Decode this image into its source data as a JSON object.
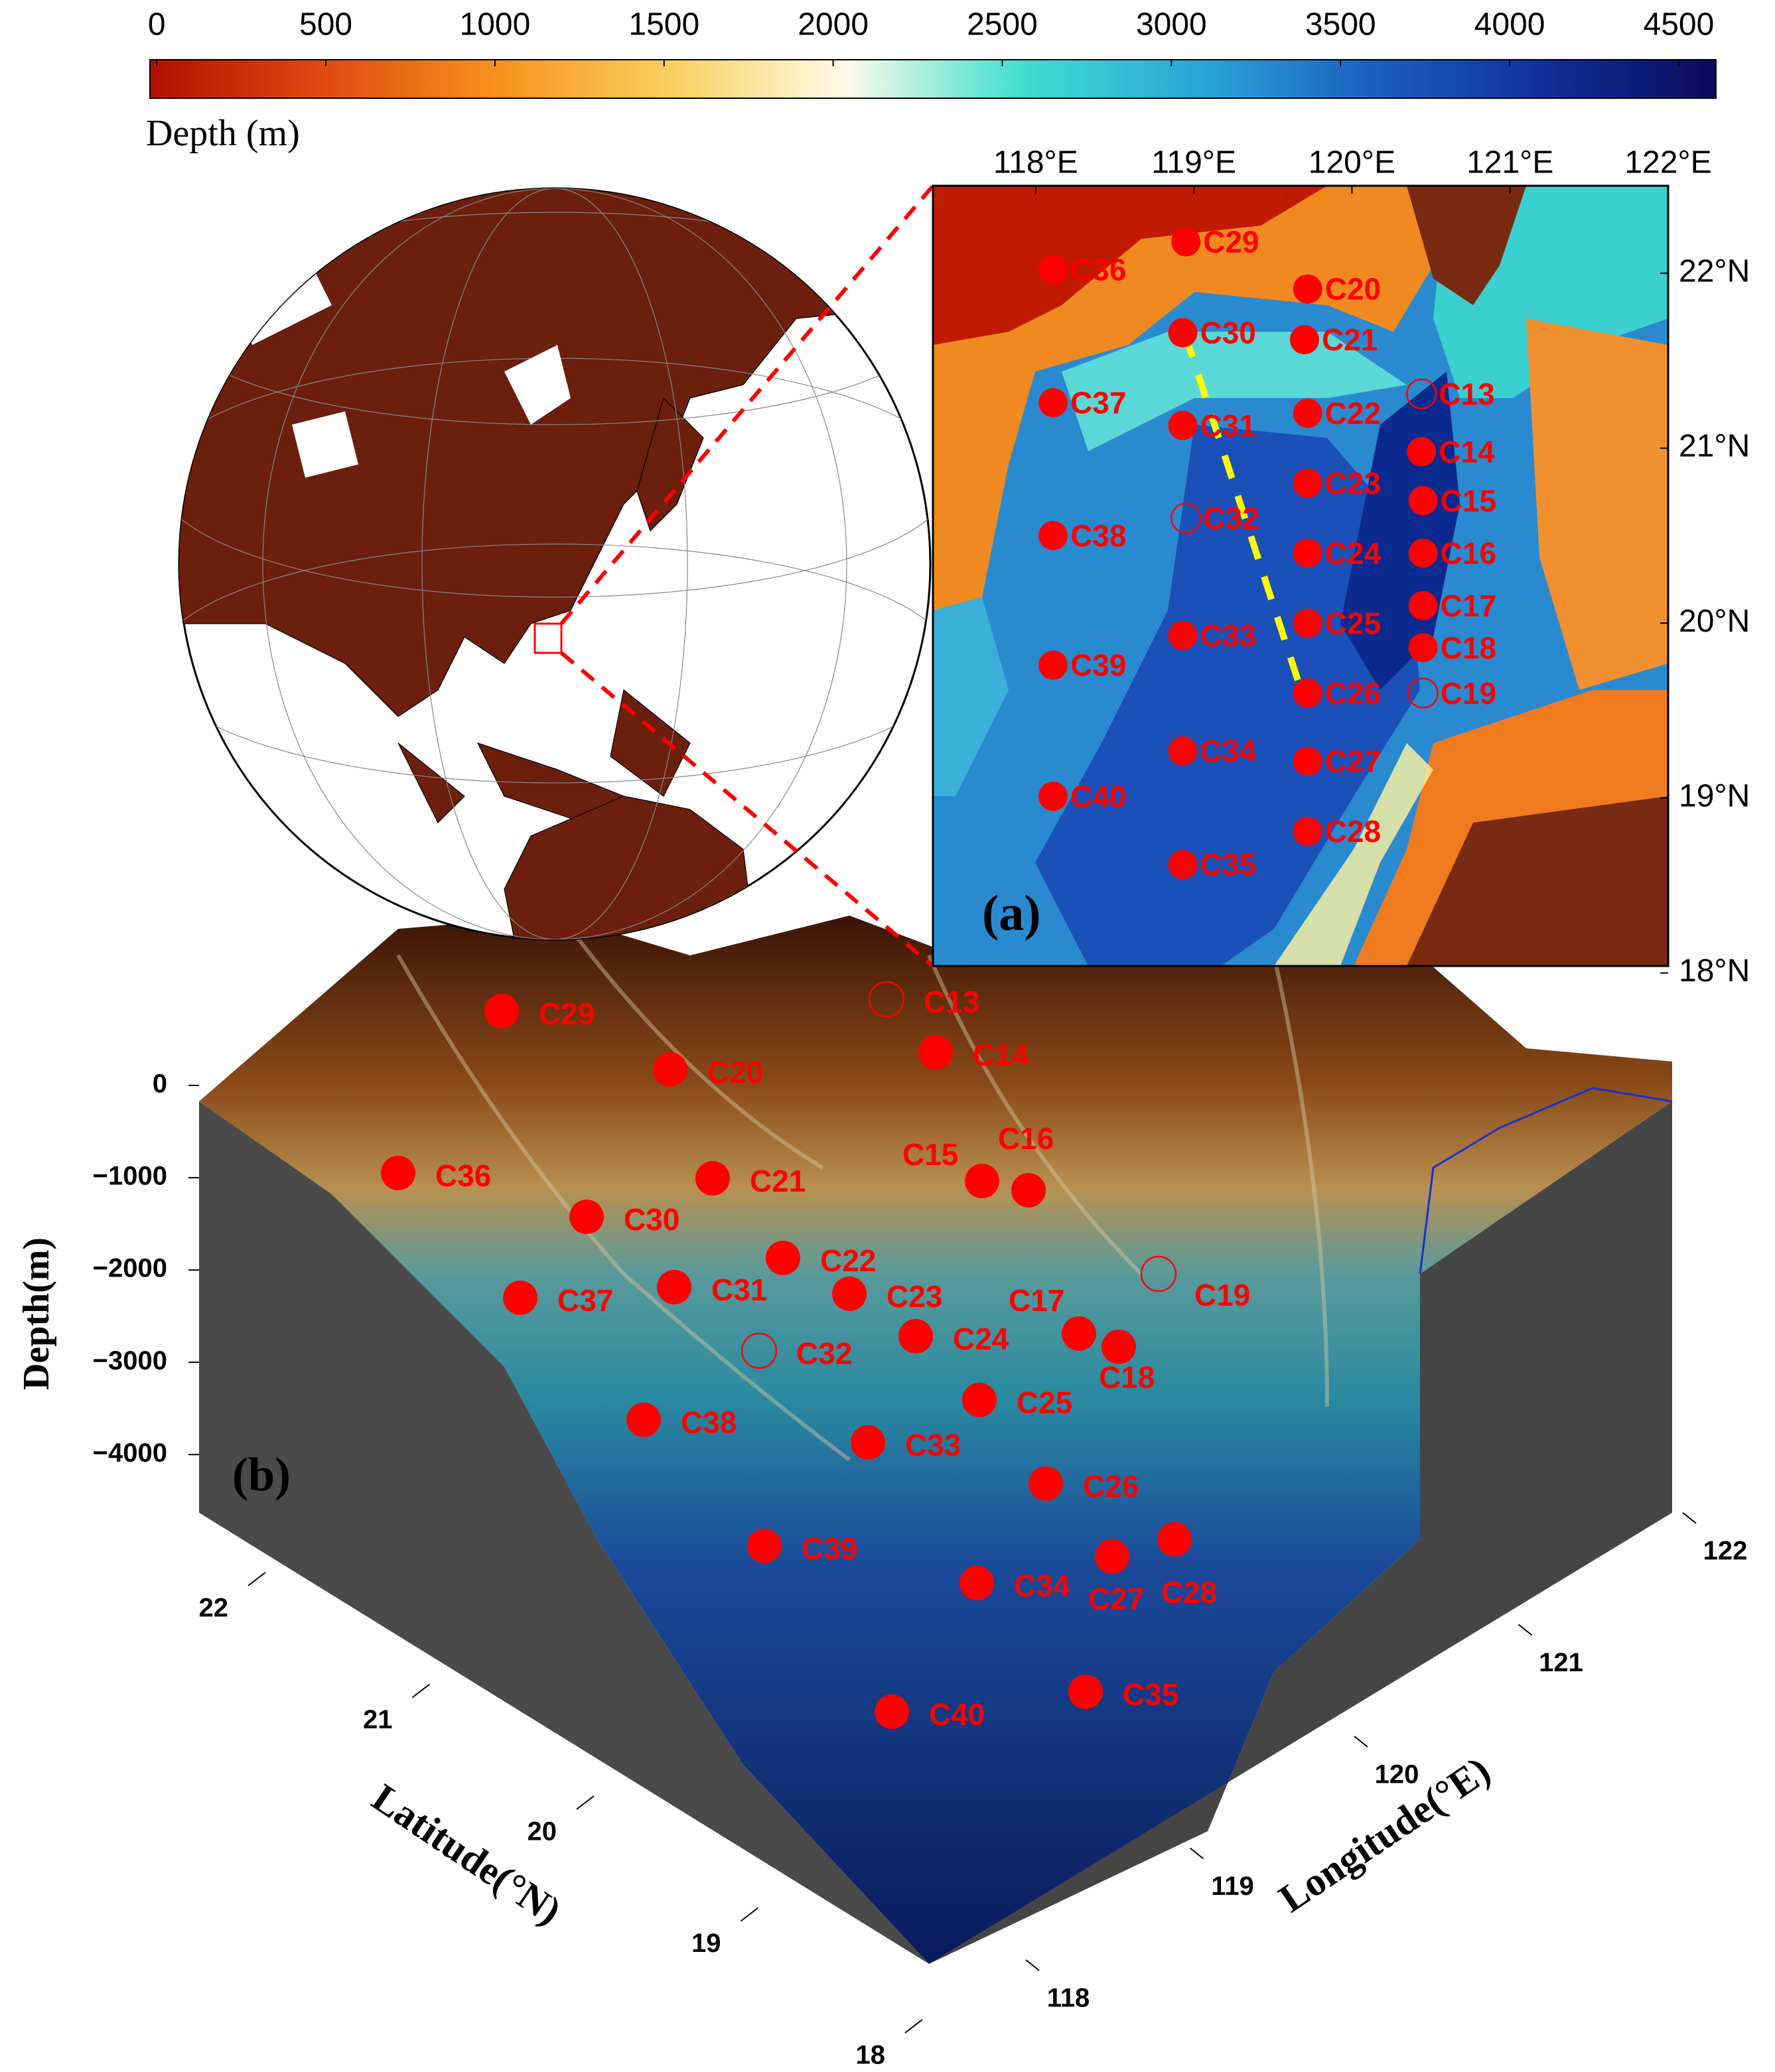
{
  "chart_data": {
    "type": "map",
    "station_color": "#ff0000",
    "colorbar": {
      "label": "Depth (m)",
      "clim": [
        -20,
        4610
      ],
      "ticks": [
        0,
        500,
        1000,
        1500,
        2000,
        2500,
        3000,
        3500,
        4000,
        4500
      ],
      "colormap": [
        "#b01000",
        "#e04a10",
        "#f7921c",
        "#f9d060",
        "#fffbe8",
        "#40e0d0",
        "#2aa8d8",
        "#1a62c0",
        "#10309a",
        "#0a0a5a"
      ]
    },
    "stations": [
      {
        "name": "C29",
        "lon": 118.95,
        "lat": 22.18,
        "open": false
      },
      {
        "name": "C36",
        "lon": 118.11,
        "lat": 22.02,
        "open": false
      },
      {
        "name": "C20",
        "lon": 119.72,
        "lat": 21.91,
        "open": false
      },
      {
        "name": "C30",
        "lon": 118.93,
        "lat": 21.66,
        "open": false
      },
      {
        "name": "C21",
        "lon": 119.7,
        "lat": 21.62,
        "open": false
      },
      {
        "name": "C37",
        "lon": 118.11,
        "lat": 21.26,
        "open": false
      },
      {
        "name": "C13",
        "lon": 120.44,
        "lat": 21.31,
        "open": true
      },
      {
        "name": "C22",
        "lon": 119.72,
        "lat": 21.2,
        "open": false
      },
      {
        "name": "C31",
        "lon": 118.93,
        "lat": 21.13,
        "open": false
      },
      {
        "name": "C14",
        "lon": 120.44,
        "lat": 20.98,
        "open": false
      },
      {
        "name": "C23",
        "lon": 119.72,
        "lat": 20.8,
        "open": false
      },
      {
        "name": "C15",
        "lon": 120.45,
        "lat": 20.7,
        "open": false
      },
      {
        "name": "C32",
        "lon": 118.95,
        "lat": 20.6,
        "open": true
      },
      {
        "name": "C38",
        "lon": 118.11,
        "lat": 20.5,
        "open": false
      },
      {
        "name": "C24",
        "lon": 119.72,
        "lat": 20.4,
        "open": false
      },
      {
        "name": "C16",
        "lon": 120.45,
        "lat": 20.4,
        "open": false
      },
      {
        "name": "C17",
        "lon": 120.45,
        "lat": 20.1,
        "open": false
      },
      {
        "name": "C25",
        "lon": 119.72,
        "lat": 20.0,
        "open": false
      },
      {
        "name": "C33",
        "lon": 118.93,
        "lat": 19.93,
        "open": false
      },
      {
        "name": "C18",
        "lon": 120.45,
        "lat": 19.86,
        "open": false
      },
      {
        "name": "C39",
        "lon": 118.11,
        "lat": 19.76,
        "open": false
      },
      {
        "name": "C19",
        "lon": 120.45,
        "lat": 19.6,
        "open": true
      },
      {
        "name": "C26",
        "lon": 119.72,
        "lat": 19.6,
        "open": false
      },
      {
        "name": "C34",
        "lon": 118.93,
        "lat": 19.27,
        "open": false
      },
      {
        "name": "C27",
        "lon": 119.72,
        "lat": 19.21,
        "open": false
      },
      {
        "name": "C40",
        "lon": 118.11,
        "lat": 19.01,
        "open": false
      },
      {
        "name": "C28",
        "lon": 119.72,
        "lat": 18.81,
        "open": false
      },
      {
        "name": "C35",
        "lon": 118.93,
        "lat": 18.62,
        "open": false
      }
    ],
    "panel_a": {
      "label": "(a)",
      "xlim": [
        117.35,
        122
      ],
      "ylim": [
        18.04,
        22.5
      ],
      "xticks": [
        {
          "value": 118,
          "label": "118°E"
        },
        {
          "value": 119,
          "label": "119°E"
        },
        {
          "value": 120,
          "label": "120°E"
        },
        {
          "value": 121,
          "label": "121°E"
        },
        {
          "value": 122,
          "label": "122°E"
        }
      ],
      "yticks": [
        {
          "value": 22,
          "label": "22°N"
        },
        {
          "value": 21,
          "label": "21°N"
        },
        {
          "value": 20,
          "label": "20°N"
        },
        {
          "value": 19,
          "label": "19°N"
        },
        {
          "value": 18,
          "label": "18°N"
        }
      ]
    },
    "panel_b": {
      "label": "(b)",
      "zlabel": "Depth(m)",
      "ylabel": "Latitude(°N)",
      "xlabel": "Longitude(°E)",
      "zlim": [
        -4630,
        0
      ],
      "zticks": [
        0,
        {
          "value": -1000,
          "label": "−1000"
        },
        {
          "value": -2000,
          "label": "−2000"
        },
        {
          "value": -3000,
          "label": "−3000"
        },
        {
          "value": -4000,
          "label": "−4000"
        }
      ],
      "ylim": [
        18,
        22.5
      ],
      "yticks": [
        22,
        21,
        20,
        19,
        18
      ],
      "xlim": [
        117.5,
        122
      ],
      "xticks": [
        118,
        119,
        120,
        121,
        122
      ]
    }
  }
}
